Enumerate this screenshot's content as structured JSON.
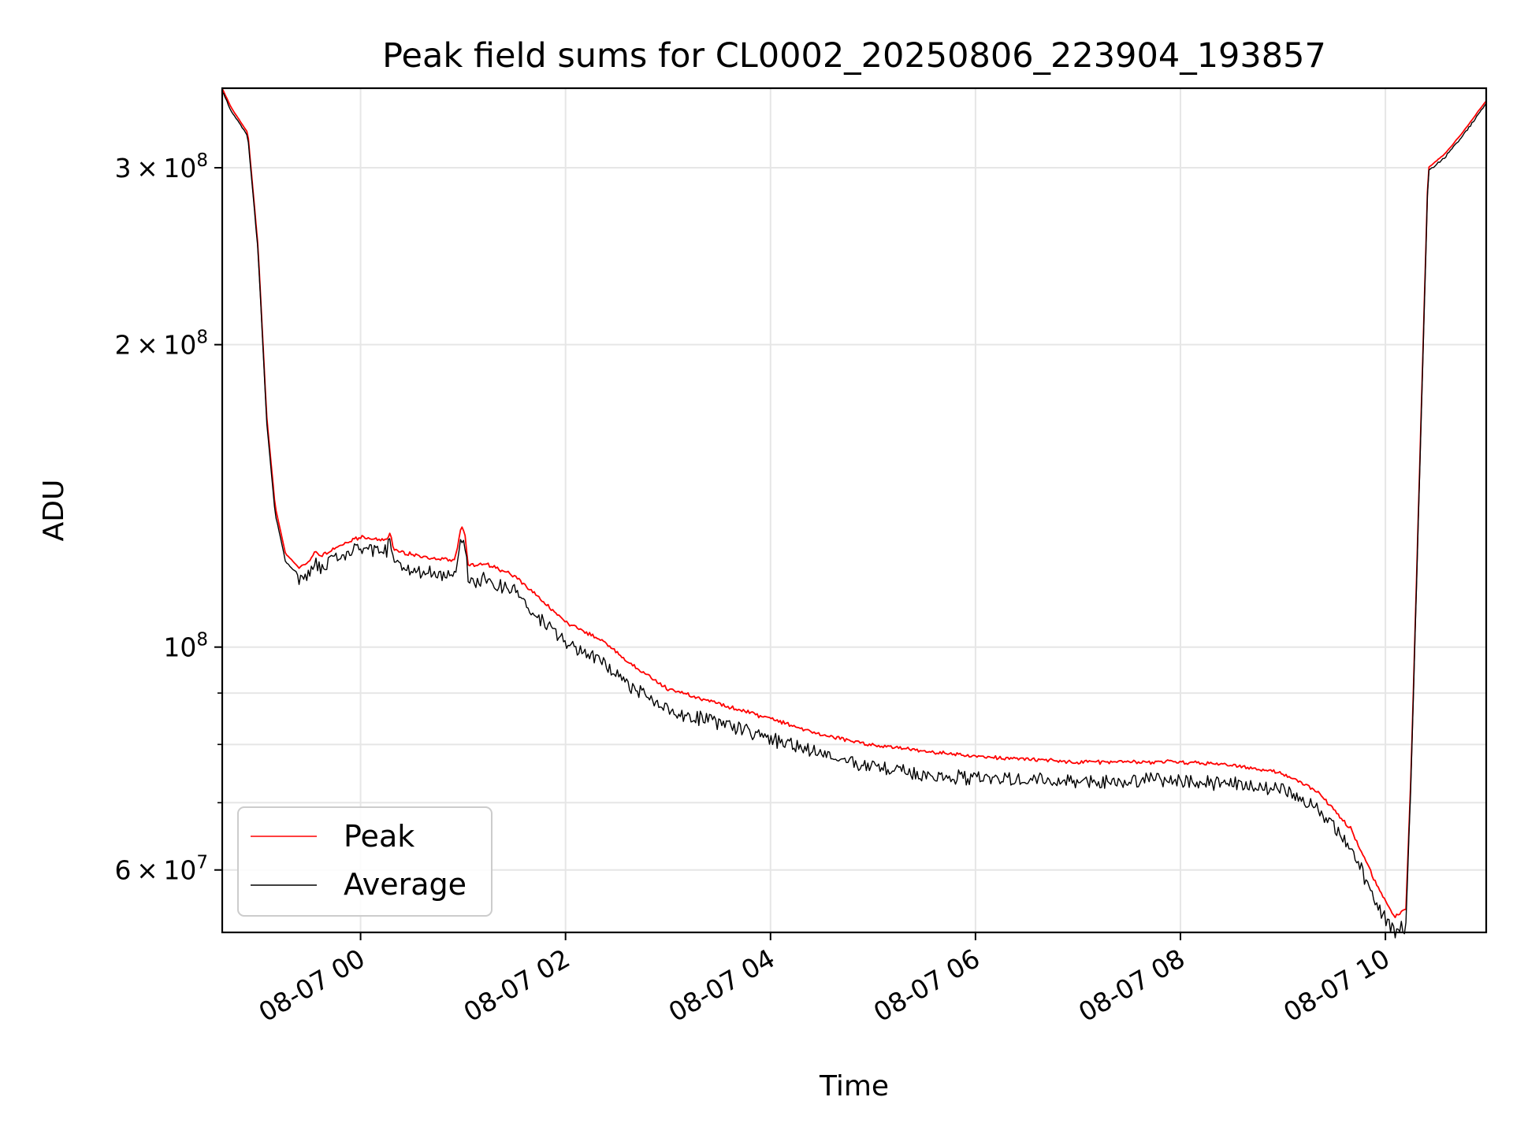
{
  "chart_data": {
    "type": "line",
    "title": "Peak field sums for CL0002_20250806_223904_193857",
    "xlabel": "Time",
    "ylabel": "ADU",
    "y_scale": "log",
    "ylim": [
      52000000,
      360000000
    ],
    "xlim": [
      "2025-08-06 22:39",
      "2025-08-07 10:59"
    ],
    "grid": true,
    "legend_position": "lower-left",
    "x_ticks": [
      {
        "t": "2025-08-07 00:00",
        "label": "08-07 00"
      },
      {
        "t": "2025-08-07 02:00",
        "label": "08-07 02"
      },
      {
        "t": "2025-08-07 04:00",
        "label": "08-07 04"
      },
      {
        "t": "2025-08-07 06:00",
        "label": "08-07 06"
      },
      {
        "t": "2025-08-07 08:00",
        "label": "08-07 08"
      },
      {
        "t": "2025-08-07 10:00",
        "label": "08-07 10"
      }
    ],
    "y_ticks": [
      {
        "value": 300000000,
        "base": "3",
        "exp": "8"
      },
      {
        "value": 200000000,
        "base": "2",
        "exp": "8"
      },
      {
        "value": 100000000,
        "base": "",
        "exp": "8"
      },
      {
        "value": 60000000,
        "base": "6",
        "exp": "7"
      }
    ],
    "y_minor_ticks": [
      90000000,
      80000000,
      70000000
    ],
    "series": [
      {
        "name": "Peak",
        "color": "#ff0000",
        "noise": 0.012,
        "points": [
          [
            "2025-08-06 22:39",
            360000000
          ],
          [
            "2025-08-06 22:44",
            345000000
          ],
          [
            "2025-08-06 22:54",
            325000000
          ],
          [
            "2025-08-06 23:00",
            250000000
          ],
          [
            "2025-08-06 23:05",
            170000000
          ],
          [
            "2025-08-06 23:10",
            138000000
          ],
          [
            "2025-08-06 23:16",
            124000000
          ],
          [
            "2025-08-06 23:24",
            120000000
          ],
          [
            "2025-08-06 23:30",
            122000000
          ],
          [
            "2025-08-06 23:33",
            125000000
          ],
          [
            "2025-08-06 23:36",
            123000000
          ],
          [
            "2025-08-06 23:45",
            126000000
          ],
          [
            "2025-08-07 00:00",
            129000000
          ],
          [
            "2025-08-07 00:15",
            128000000
          ],
          [
            "2025-08-07 00:17",
            130000000
          ],
          [
            "2025-08-07 00:20",
            125000000
          ],
          [
            "2025-08-07 00:30",
            124000000
          ],
          [
            "2025-08-07 00:55",
            122000000
          ],
          [
            "2025-08-07 00:59",
            132000000
          ],
          [
            "2025-08-07 01:01",
            130000000
          ],
          [
            "2025-08-07 01:03",
            121000000
          ],
          [
            "2025-08-07 01:15",
            121000000
          ],
          [
            "2025-08-07 01:30",
            118000000
          ],
          [
            "2025-08-07 01:45",
            112000000
          ],
          [
            "2025-08-07 02:00",
            106000000
          ],
          [
            "2025-08-07 02:20",
            102000000
          ],
          [
            "2025-08-07 02:40",
            96000000
          ],
          [
            "2025-08-07 03:00",
            91000000
          ],
          [
            "2025-08-07 03:30",
            88000000
          ],
          [
            "2025-08-07 04:00",
            85000000
          ],
          [
            "2025-08-07 04:30",
            82000000
          ],
          [
            "2025-08-07 05:00",
            80000000
          ],
          [
            "2025-08-07 05:30",
            79000000
          ],
          [
            "2025-08-07 06:00",
            78000000
          ],
          [
            "2025-08-07 06:30",
            77500000
          ],
          [
            "2025-08-07 07:00",
            77000000
          ],
          [
            "2025-08-07 07:30",
            77000000
          ],
          [
            "2025-08-07 08:00",
            77000000
          ],
          [
            "2025-08-07 08:30",
            76500000
          ],
          [
            "2025-08-07 09:00",
            75000000
          ],
          [
            "2025-08-07 09:20",
            72000000
          ],
          [
            "2025-08-07 09:40",
            66000000
          ],
          [
            "2025-08-07 09:55",
            58000000
          ],
          [
            "2025-08-07 10:05",
            54000000
          ],
          [
            "2025-08-07 10:12",
            55000000
          ],
          [
            "2025-08-07 10:15",
            75000000
          ],
          [
            "2025-08-07 10:20",
            150000000
          ],
          [
            "2025-08-07 10:25",
            300000000
          ],
          [
            "2025-08-07 10:35",
            310000000
          ],
          [
            "2025-08-07 10:45",
            325000000
          ],
          [
            "2025-08-07 10:59",
            350000000
          ]
        ]
      },
      {
        "name": "Average",
        "color": "#000000",
        "noise": 0.03,
        "points": [
          [
            "2025-08-06 22:39",
            358000000
          ],
          [
            "2025-08-06 22:44",
            343000000
          ],
          [
            "2025-08-06 22:54",
            323000000
          ],
          [
            "2025-08-06 23:00",
            248000000
          ],
          [
            "2025-08-06 23:05",
            168000000
          ],
          [
            "2025-08-06 23:10",
            136000000
          ],
          [
            "2025-08-06 23:16",
            122000000
          ],
          [
            "2025-08-06 23:24",
            118000000
          ],
          [
            "2025-08-06 23:30",
            120000000
          ],
          [
            "2025-08-06 23:33",
            123000000
          ],
          [
            "2025-08-06 23:36",
            121000000
          ],
          [
            "2025-08-06 23:45",
            124000000
          ],
          [
            "2025-08-07 00:00",
            127000000
          ],
          [
            "2025-08-07 00:15",
            126000000
          ],
          [
            "2025-08-07 00:17",
            129000000
          ],
          [
            "2025-08-07 00:20",
            123000000
          ],
          [
            "2025-08-07 00:30",
            121000000
          ],
          [
            "2025-08-07 00:55",
            119000000
          ],
          [
            "2025-08-07 00:59",
            131000000
          ],
          [
            "2025-08-07 01:01",
            128000000
          ],
          [
            "2025-08-07 01:03",
            118000000
          ],
          [
            "2025-08-07 01:15",
            118000000
          ],
          [
            "2025-08-07 01:30",
            115000000
          ],
          [
            "2025-08-07 01:45",
            108000000
          ],
          [
            "2025-08-07 02:00",
            102000000
          ],
          [
            "2025-08-07 02:20",
            98000000
          ],
          [
            "2025-08-07 02:40",
            92000000
          ],
          [
            "2025-08-07 03:00",
            87500000
          ],
          [
            "2025-08-07 03:30",
            85000000
          ],
          [
            "2025-08-07 04:00",
            82000000
          ],
          [
            "2025-08-07 04:30",
            79000000
          ],
          [
            "2025-08-07 05:00",
            77000000
          ],
          [
            "2025-08-07 05:30",
            75500000
          ],
          [
            "2025-08-07 06:00",
            75000000
          ],
          [
            "2025-08-07 06:30",
            74500000
          ],
          [
            "2025-08-07 07:00",
            74500000
          ],
          [
            "2025-08-07 07:30",
            74500000
          ],
          [
            "2025-08-07 08:00",
            74500000
          ],
          [
            "2025-08-07 08:30",
            74000000
          ],
          [
            "2025-08-07 09:00",
            73000000
          ],
          [
            "2025-08-07 09:20",
            70000000
          ],
          [
            "2025-08-07 09:40",
            64000000
          ],
          [
            "2025-08-07 09:55",
            56000000
          ],
          [
            "2025-08-07 10:05",
            52500000
          ],
          [
            "2025-08-07 10:12",
            53500000
          ],
          [
            "2025-08-07 10:15",
            74000000
          ],
          [
            "2025-08-07 10:20",
            148000000
          ],
          [
            "2025-08-07 10:25",
            298000000
          ],
          [
            "2025-08-07 10:35",
            308000000
          ],
          [
            "2025-08-07 10:45",
            323000000
          ],
          [
            "2025-08-07 10:59",
            348000000
          ]
        ]
      }
    ]
  }
}
